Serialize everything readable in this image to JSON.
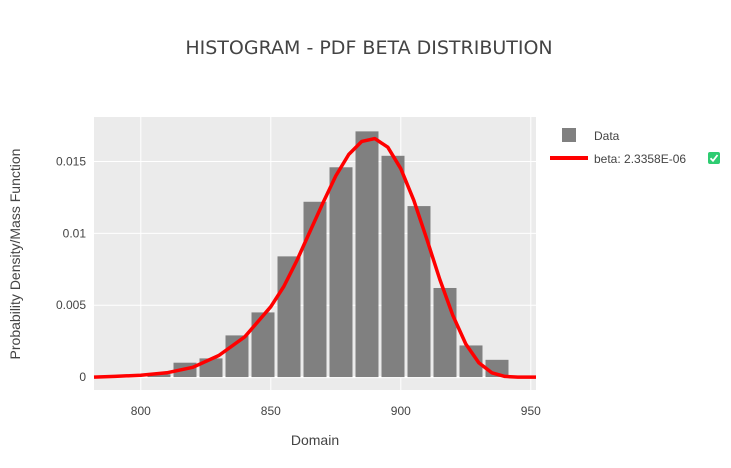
{
  "chart_data": {
    "type": "bar",
    "title": "HISTOGRAM - PDF BETA DISTRIBUTION",
    "xlabel": "Domain",
    "ylabel": "Probability Density/Mass Function",
    "xlim": [
      782,
      952
    ],
    "ylim": [
      -0.0009,
      0.0181
    ],
    "xticks": [
      800,
      850,
      900,
      950
    ],
    "yticks": [
      0,
      0.005,
      0.01,
      0.015
    ],
    "ytick_labels": [
      "0",
      "0.005",
      "0.01",
      "0.015"
    ],
    "grid": true,
    "legend_position": "top-right",
    "series": [
      {
        "name": "Data",
        "kind": "histogram",
        "color": "#808080",
        "bin_centers": [
          807,
          817,
          827,
          837,
          847,
          857,
          867,
          877,
          887,
          897,
          907,
          917,
          927,
          937
        ],
        "bin_width": 10,
        "values": [
          0.0002,
          0.001,
          0.0013,
          0.0029,
          0.0045,
          0.0084,
          0.0122,
          0.0146,
          0.0171,
          0.0154,
          0.0119,
          0.0062,
          0.0022,
          0.0012
        ]
      },
      {
        "name": "beta: 2.3358E-06",
        "kind": "line",
        "color": "#ff0000",
        "x": [
          782,
          790,
          800,
          810,
          820,
          830,
          840,
          850,
          855,
          860,
          865,
          870,
          875,
          880,
          885,
          890,
          895,
          900,
          905,
          910,
          915,
          920,
          925,
          930,
          935,
          940,
          945,
          952
        ],
        "y": [
          0.0,
          5e-05,
          0.00013,
          0.0003,
          0.00068,
          0.0015,
          0.0028,
          0.0049,
          0.0063,
          0.0081,
          0.0101,
          0.0121,
          0.014,
          0.0155,
          0.0164,
          0.0166,
          0.016,
          0.0145,
          0.0123,
          0.0096,
          0.0068,
          0.0043,
          0.0023,
          0.001,
          0.0003,
          5e-05,
          0.0,
          0.0
        ]
      }
    ]
  },
  "legend": {
    "items": [
      {
        "label": "Data",
        "symbol": "square",
        "color": "#808080"
      },
      {
        "label": "beta: 2.3358E-06",
        "symbol": "line",
        "color": "#ff0000",
        "badge_color": "#2ecc71"
      }
    ]
  },
  "colors": {
    "plot_bg": "#ebebeb",
    "grid": "#ffffff",
    "text": "#444444"
  }
}
